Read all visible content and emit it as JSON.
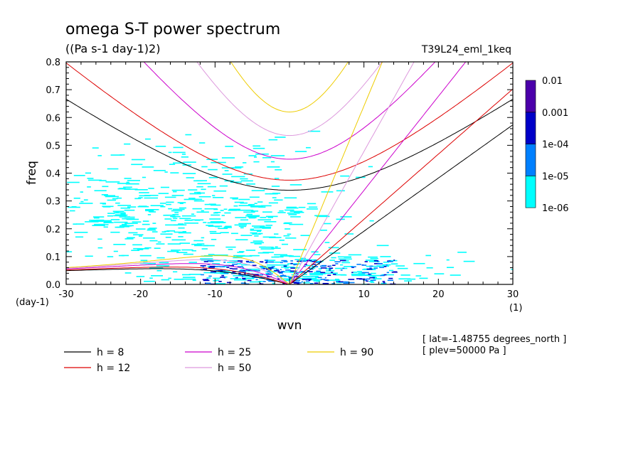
{
  "header": {
    "title": "omega S-T power spectrum",
    "units": "((Pa s-1 day-1)2)",
    "experiment": "T39L24_eml_1keq"
  },
  "footer": {
    "lat_note": "[ lat=-1.48755 degrees_north ]",
    "plev_note": "[ plev=50000 Pa ]"
  },
  "chart_data": {
    "type": "heatmap",
    "title": "omega S-T power spectrum",
    "subtitle": "((Pa s-1 day-1)2)",
    "xlabel": "wvn",
    "ylabel": "freq",
    "x_unit_label": "(1)",
    "y_unit_label": "(day-1)",
    "xlim": [
      -30,
      30
    ],
    "ylim": [
      0,
      0.8
    ],
    "x_ticks": [
      "-30",
      "-20",
      "-10",
      "0",
      "10",
      "20",
      "30"
    ],
    "y_ticks": [
      "0.0",
      "0.1",
      "0.2",
      "0.3",
      "0.4",
      "0.5",
      "0.6",
      "0.7",
      "0.8"
    ],
    "colorbar": {
      "labels": [
        "0.01",
        "0.001",
        "1e-04",
        "1e-05",
        "1e-06"
      ],
      "levels": [
        1e-06,
        1e-05,
        0.0001,
        0.001,
        0.01
      ],
      "colors": [
        "#00ffff",
        "#0080ff",
        "#0000c8",
        "#4b00aa"
      ]
    },
    "field_colors": {
      "light": "#00ffff",
      "mid": "#0080ff",
      "dark": "#0000c8"
    },
    "dispersion_curves": [
      {
        "name": "h =  8",
        "h": 8,
        "color": "#000000"
      },
      {
        "name": "h = 12",
        "h": 12,
        "color": "#dd0000"
      },
      {
        "name": "h = 25",
        "h": 25,
        "color": "#cc00cc"
      },
      {
        "name": "h = 50",
        "h": 50,
        "color": "#dd99dd"
      },
      {
        "name": "h = 90",
        "h": 90,
        "color": "#eecc00"
      }
    ]
  }
}
